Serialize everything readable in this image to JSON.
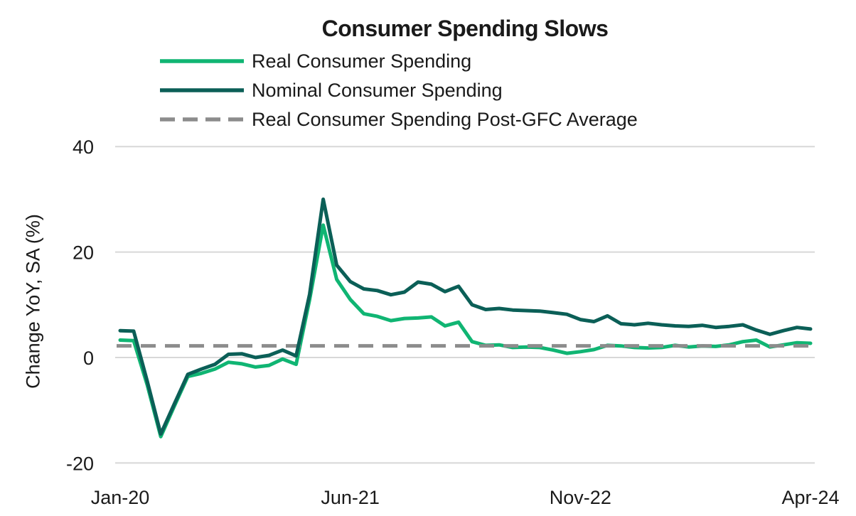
{
  "title": "Consumer Spending Slows",
  "y_axis_label": "Change YoY, SA (%)",
  "legend": [
    {
      "label": "Real Consumer Spending",
      "style": "solid",
      "color": "#10B573"
    },
    {
      "label": "Nominal Consumer Spending",
      "style": "solid",
      "color": "#0B5F57"
    },
    {
      "label": "Real Consumer Spending Post-GFC Average",
      "style": "dashed",
      "color": "#8C8C8C"
    }
  ],
  "colors": {
    "background": "#FFFFFF",
    "gridline": "#D8D8D8",
    "text": "#1A1A1A",
    "real_line": "#10B573",
    "nominal_line": "#0B5F57",
    "average_line": "#8C8C8C"
  },
  "chart_data": {
    "type": "line",
    "title": "Consumer Spending Slows",
    "xlabel": "",
    "ylabel": "Change YoY, SA (%)",
    "grid": "horizontal",
    "legend_position": "top-left",
    "ylim": [
      -20,
      40
    ],
    "y_ticks": [
      40,
      20,
      0,
      -20
    ],
    "y_tick_labels": [
      "40",
      "20",
      "0",
      "-20"
    ],
    "x_tick_labels": [
      "Jan-20",
      "Jun-21",
      "Nov-22",
      "Apr-24"
    ],
    "x_tick_indices": [
      0,
      17,
      34,
      51
    ],
    "categories": [
      "Jan-20",
      "Feb-20",
      "Mar-20",
      "Apr-20",
      "May-20",
      "Jun-20",
      "Jul-20",
      "Aug-20",
      "Sep-20",
      "Oct-20",
      "Nov-20",
      "Dec-20",
      "Jan-21",
      "Feb-21",
      "Mar-21",
      "Apr-21",
      "May-21",
      "Jun-21",
      "Jul-21",
      "Aug-21",
      "Sep-21",
      "Oct-21",
      "Nov-21",
      "Dec-21",
      "Jan-22",
      "Feb-22",
      "Mar-22",
      "Apr-22",
      "May-22",
      "Jun-22",
      "Jul-22",
      "Aug-22",
      "Sep-22",
      "Oct-22",
      "Nov-22",
      "Dec-22",
      "Jan-23",
      "Feb-23",
      "Mar-23",
      "Apr-23",
      "May-23",
      "Jun-23",
      "Jul-23",
      "Aug-23",
      "Sep-23",
      "Oct-23",
      "Nov-23",
      "Dec-23",
      "Jan-24",
      "Feb-24",
      "Mar-24",
      "Apr-24"
    ],
    "series": [
      {
        "name": "Real Consumer Spending",
        "color": "#10B573",
        "dash": null,
        "values": [
          3.3,
          3.2,
          -5.2,
          -15.0,
          -9.2,
          -3.6,
          -3.0,
          -2.2,
          -0.9,
          -1.2,
          -1.8,
          -1.5,
          -0.3,
          -1.3,
          11.0,
          25.1,
          14.8,
          11.0,
          8.3,
          7.8,
          7.0,
          7.4,
          7.5,
          7.7,
          6.0,
          6.7,
          3.0,
          2.3,
          2.4,
          1.9,
          2.0,
          1.9,
          1.4,
          0.8,
          1.1,
          1.5,
          2.3,
          2.2,
          1.9,
          1.8,
          1.9,
          2.3,
          2.0,
          2.2,
          2.1,
          2.4,
          3.0,
          3.3,
          2.0,
          2.4,
          2.8,
          2.7
        ]
      },
      {
        "name": "Nominal Consumer Spending",
        "color": "#0B5F57",
        "dash": null,
        "values": [
          5.1,
          5.0,
          -4.5,
          -14.5,
          -8.8,
          -3.2,
          -2.2,
          -1.3,
          0.6,
          0.7,
          0.0,
          0.4,
          1.4,
          0.3,
          12.0,
          30.0,
          17.5,
          14.4,
          13.0,
          12.7,
          11.9,
          12.4,
          14.3,
          13.9,
          12.5,
          13.5,
          10.0,
          9.1,
          9.3,
          9.0,
          8.9,
          8.8,
          8.5,
          8.2,
          7.2,
          6.8,
          7.9,
          6.4,
          6.2,
          6.5,
          6.2,
          6.0,
          5.9,
          6.1,
          5.7,
          5.9,
          6.2,
          5.2,
          4.4,
          5.1,
          5.7,
          5.4
        ]
      },
      {
        "name": "Real Consumer Spending Post-GFC Average",
        "color": "#8C8C8C",
        "dash": "dashed",
        "constant_value": 2.2
      }
    ]
  }
}
